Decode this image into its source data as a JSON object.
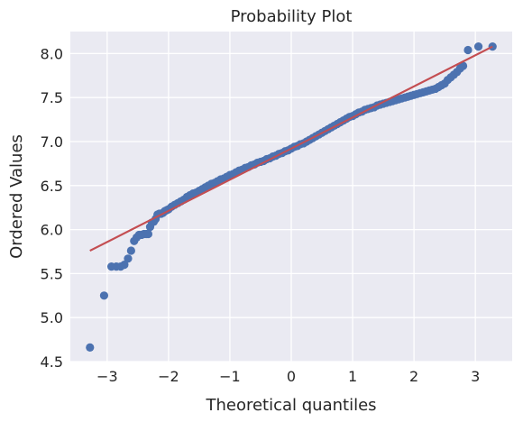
{
  "chart_data": {
    "type": "scatter",
    "title": "Probability Plot",
    "xlabel": "Theoretical quantiles",
    "ylabel": "Ordered Values",
    "xlim": [
      -3.6,
      3.6
    ],
    "ylim": [
      4.5,
      8.25
    ],
    "xticks": [
      -3,
      -2,
      -1,
      0,
      1,
      2,
      3
    ],
    "xtick_labels": [
      "−3",
      "−2",
      "−1",
      "0",
      "1",
      "2",
      "3"
    ],
    "yticks": [
      4.5,
      5.0,
      5.5,
      6.0,
      6.5,
      7.0,
      7.5,
      8.0
    ],
    "ytick_labels": [
      "4.5",
      "5.0",
      "5.5",
      "6.0",
      "6.5",
      "7.0",
      "7.5",
      "8.0"
    ],
    "grid": true,
    "series": [
      {
        "kind": "points",
        "color": "#4c72b0",
        "points": [
          [
            -3.28,
            4.66
          ],
          [
            -3.05,
            5.25
          ],
          [
            -2.93,
            5.58
          ],
          [
            -2.85,
            5.58
          ],
          [
            -2.78,
            5.58
          ],
          [
            -2.72,
            5.6
          ],
          [
            -2.66,
            5.67
          ],
          [
            -2.61,
            5.76
          ],
          [
            -2.56,
            5.87
          ],
          [
            -2.52,
            5.91
          ],
          [
            -2.48,
            5.94
          ],
          [
            -2.44,
            5.94
          ],
          [
            -2.4,
            5.95
          ],
          [
            -2.36,
            5.95
          ],
          [
            -2.33,
            5.95
          ],
          [
            -2.3,
            6.03
          ],
          [
            -2.27,
            6.08
          ],
          [
            -2.24,
            6.09
          ],
          [
            -2.21,
            6.12
          ],
          [
            -2.18,
            6.17
          ],
          [
            -2.15,
            6.18
          ],
          [
            -2.12,
            6.18
          ],
          [
            -2.09,
            6.19
          ],
          [
            -2.06,
            6.21
          ],
          [
            -2.03,
            6.22
          ],
          [
            -2.0,
            6.23
          ],
          [
            -1.95,
            6.26
          ],
          [
            -1.9,
            6.28
          ],
          [
            -1.85,
            6.3
          ],
          [
            -1.8,
            6.32
          ],
          [
            -1.75,
            6.34
          ],
          [
            -1.7,
            6.37
          ],
          [
            -1.65,
            6.39
          ],
          [
            -1.6,
            6.41
          ],
          [
            -1.55,
            6.42
          ],
          [
            -1.5,
            6.44
          ],
          [
            -1.45,
            6.46
          ],
          [
            -1.4,
            6.48
          ],
          [
            -1.35,
            6.5
          ],
          [
            -1.3,
            6.52
          ],
          [
            -1.25,
            6.53
          ],
          [
            -1.2,
            6.55
          ],
          [
            -1.15,
            6.57
          ],
          [
            -1.1,
            6.58
          ],
          [
            -1.05,
            6.6
          ],
          [
            -1.0,
            6.62
          ],
          [
            -0.95,
            6.63
          ],
          [
            -0.9,
            6.65
          ],
          [
            -0.85,
            6.67
          ],
          [
            -0.8,
            6.68
          ],
          [
            -0.75,
            6.7
          ],
          [
            -0.7,
            6.71
          ],
          [
            -0.65,
            6.73
          ],
          [
            -0.6,
            6.74
          ],
          [
            -0.55,
            6.76
          ],
          [
            -0.5,
            6.77
          ],
          [
            -0.45,
            6.78
          ],
          [
            -0.4,
            6.8
          ],
          [
            -0.35,
            6.81
          ],
          [
            -0.3,
            6.83
          ],
          [
            -0.25,
            6.84
          ],
          [
            -0.2,
            6.86
          ],
          [
            -0.15,
            6.87
          ],
          [
            -0.1,
            6.89
          ],
          [
            -0.05,
            6.9
          ],
          [
            0.0,
            6.92
          ],
          [
            0.05,
            6.94
          ],
          [
            0.1,
            6.95
          ],
          [
            0.15,
            6.97
          ],
          [
            0.2,
            6.98
          ],
          [
            0.25,
            7.0
          ],
          [
            0.3,
            7.02
          ],
          [
            0.35,
            7.04
          ],
          [
            0.4,
            7.06
          ],
          [
            0.45,
            7.08
          ],
          [
            0.5,
            7.1
          ],
          [
            0.55,
            7.12
          ],
          [
            0.6,
            7.14
          ],
          [
            0.65,
            7.16
          ],
          [
            0.7,
            7.18
          ],
          [
            0.75,
            7.2
          ],
          [
            0.8,
            7.22
          ],
          [
            0.85,
            7.24
          ],
          [
            0.9,
            7.26
          ],
          [
            0.95,
            7.28
          ],
          [
            1.0,
            7.29
          ],
          [
            1.05,
            7.31
          ],
          [
            1.1,
            7.33
          ],
          [
            1.15,
            7.34
          ],
          [
            1.2,
            7.36
          ],
          [
            1.25,
            7.37
          ],
          [
            1.3,
            7.38
          ],
          [
            1.35,
            7.39
          ],
          [
            1.4,
            7.41
          ],
          [
            1.45,
            7.42
          ],
          [
            1.5,
            7.43
          ],
          [
            1.55,
            7.44
          ],
          [
            1.6,
            7.45
          ],
          [
            1.65,
            7.46
          ],
          [
            1.7,
            7.47
          ],
          [
            1.75,
            7.48
          ],
          [
            1.8,
            7.49
          ],
          [
            1.85,
            7.5
          ],
          [
            1.9,
            7.51
          ],
          [
            1.95,
            7.52
          ],
          [
            2.0,
            7.53
          ],
          [
            2.05,
            7.54
          ],
          [
            2.1,
            7.55
          ],
          [
            2.15,
            7.56
          ],
          [
            2.2,
            7.57
          ],
          [
            2.25,
            7.58
          ],
          [
            2.3,
            7.59
          ],
          [
            2.35,
            7.6
          ],
          [
            2.4,
            7.62
          ],
          [
            2.45,
            7.64
          ],
          [
            2.5,
            7.66
          ],
          [
            2.55,
            7.7
          ],
          [
            2.6,
            7.73
          ],
          [
            2.65,
            7.76
          ],
          [
            2.7,
            7.79
          ],
          [
            2.75,
            7.83
          ],
          [
            2.8,
            7.86
          ],
          [
            2.88,
            8.04
          ],
          [
            3.05,
            8.08
          ],
          [
            3.28,
            8.08
          ]
        ]
      },
      {
        "kind": "fit-line",
        "color": "#c44e52",
        "points": [
          [
            -3.28,
            5.76
          ],
          [
            3.28,
            8.08
          ]
        ]
      }
    ]
  }
}
